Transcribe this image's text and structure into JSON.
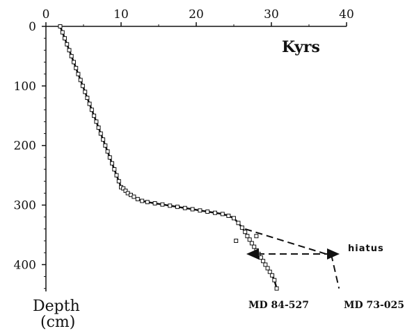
{
  "chart_data": {
    "type": "scatter",
    "xlabel": "Kyrs",
    "ylabel": "Depth",
    "ylabel_unit": "(cm)",
    "x_axis_position": "top",
    "y_axis_inverted": true,
    "xlim": [
      0,
      40
    ],
    "ylim": [
      0,
      445
    ],
    "x_ticks": [
      "0",
      "10",
      "20",
      "30",
      "40"
    ],
    "y_ticks": [
      "0",
      "100",
      "200",
      "300",
      "400"
    ],
    "series": [
      {
        "name": "MD 84-527",
        "style": "squares",
        "x": [
          1.9,
          2.2,
          2.5,
          2.8,
          3.1,
          3.4,
          3.7,
          4.0,
          4.3,
          4.6,
          4.9,
          5.2,
          5.5,
          5.8,
          6.1,
          6.4,
          6.7,
          7.0,
          7.3,
          7.6,
          7.9,
          8.2,
          8.5,
          8.8,
          9.1,
          9.4,
          9.7,
          10.0,
          10.3,
          10.6,
          10.9,
          11.3,
          11.7,
          12.2,
          12.8,
          13.5,
          14.5,
          15.5,
          16.5,
          17.5,
          18.5,
          19.5,
          20.5,
          21.5,
          22.5,
          23.5,
          24.3,
          25.0,
          25.6,
          26.1,
          26.5,
          26.8,
          27.1,
          27.4,
          27.7,
          28.0,
          28.3,
          28.6,
          28.9,
          29.2,
          29.5,
          29.8,
          30.1,
          30.4,
          30.7,
          25.3,
          28.0
        ],
        "y": [
          0,
          10,
          20,
          30,
          40,
          50,
          60,
          70,
          80,
          90,
          100,
          110,
          120,
          130,
          140,
          150,
          160,
          170,
          180,
          190,
          200,
          210,
          220,
          230,
          240,
          250,
          260,
          270,
          272,
          276,
          280,
          283,
          286,
          290,
          293,
          295,
          297,
          299,
          301,
          303,
          305,
          307,
          309,
          311,
          313,
          315,
          318,
          322,
          330,
          338,
          345,
          352,
          358,
          364,
          370,
          376,
          382,
          388,
          394,
          400,
          406,
          412,
          418,
          426,
          440,
          360,
          352
        ]
      },
      {
        "name": "MD 73-025",
        "style": "dashed",
        "x": [
          26.5,
          38.0,
          39.0
        ],
        "y": [
          340,
          385,
          440
        ]
      }
    ],
    "annotations": [
      {
        "text": "hiatus",
        "x": 41,
        "y": 372
      },
      {
        "text": "MD 84-527",
        "x": 29.5,
        "y": 470
      },
      {
        "text": "MD 73-025",
        "x": 43,
        "y": 470
      }
    ]
  }
}
